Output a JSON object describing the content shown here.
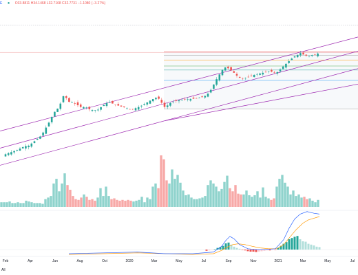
{
  "header": {
    "symbol_fragment": "E",
    "ohlc_text": "O33.8811 H34.1468 L32.7168 C32.7731 −1.1080 (−3.27%)"
  },
  "toolbar": {
    "range_label": "All"
  },
  "colors": {
    "up": "#26a69a",
    "down": "#ef5350",
    "up_volume": "#8fd3cc",
    "down_volume": "#f7a9a7",
    "channel": "#9c27b0",
    "macd": "#2962ff",
    "signal": "#ff9800",
    "fib_levels": [
      "#ef5350",
      "#9e9e9e",
      "#ff9800",
      "#4caf50",
      "#26a69a",
      "#2196f3",
      "#9e9e9e"
    ]
  },
  "chart_data": {
    "type": "candlestick",
    "x_ticks": [
      "Feb",
      "Apr",
      "Jun",
      "Aug",
      "Oct",
      "2020",
      "Mar",
      "May",
      "Jul",
      "Sep",
      "Nov",
      "2021",
      "Mar",
      "May",
      "Jul"
    ],
    "price_series": [
      [
        0,
        5.0
      ],
      [
        4,
        6.2
      ],
      [
        8,
        7.0
      ],
      [
        14,
        7.6
      ],
      [
        20,
        8.2
      ],
      [
        28,
        9.1
      ],
      [
        36,
        10.2
      ],
      [
        42,
        10.4
      ],
      [
        52,
        12.6
      ],
      [
        60,
        14.4
      ],
      [
        66,
        17.2
      ],
      [
        72,
        20.0
      ],
      [
        78,
        23.4
      ],
      [
        84,
        25.2
      ],
      [
        88,
        27.2
      ],
      [
        92,
        30.0
      ],
      [
        96,
        29.4
      ],
      [
        100,
        27.8
      ],
      [
        106,
        27.4
      ],
      [
        112,
        26.6
      ],
      [
        118,
        25.6
      ],
      [
        124,
        25.8
      ],
      [
        130,
        24.8
      ],
      [
        136,
        24.4
      ],
      [
        142,
        24.6
      ],
      [
        148,
        26.0
      ],
      [
        154,
        27.2
      ],
      [
        160,
        27.8
      ],
      [
        166,
        26.6
      ],
      [
        172,
        26.3
      ],
      [
        178,
        25.8
      ],
      [
        184,
        25.4
      ],
      [
        190,
        24.6
      ],
      [
        196,
        25.2
      ],
      [
        202,
        25.8
      ],
      [
        208,
        26.6
      ],
      [
        214,
        27.6
      ],
      [
        220,
        28.6
      ],
      [
        226,
        29.4
      ],
      [
        232,
        28.9
      ],
      [
        236,
        26.8
      ],
      [
        240,
        25.4
      ],
      [
        244,
        26.6
      ],
      [
        248,
        27.4
      ],
      [
        254,
        28.0
      ],
      [
        260,
        28.4
      ],
      [
        266,
        28.6
      ],
      [
        272,
        28.8
      ],
      [
        278,
        28.9
      ],
      [
        284,
        29.2
      ],
      [
        290,
        29.4
      ],
      [
        296,
        29.8
      ],
      [
        302,
        31.0
      ],
      [
        308,
        33.2
      ],
      [
        312,
        35.6
      ],
      [
        316,
        37.4
      ],
      [
        320,
        39.2
      ],
      [
        324,
        40.8
      ],
      [
        328,
        41.6
      ],
      [
        332,
        41.0
      ],
      [
        338,
        39.8
      ],
      [
        344,
        38.2
      ],
      [
        350,
        37.0
      ],
      [
        356,
        37.2
      ],
      [
        362,
        37.8
      ],
      [
        368,
        38.4
      ],
      [
        374,
        38.8
      ],
      [
        380,
        39.2
      ],
      [
        386,
        39.6
      ],
      [
        392,
        40.0
      ],
      [
        398,
        39.4
      ],
      [
        404,
        39.6
      ],
      [
        408,
        41.0
      ],
      [
        412,
        42.0
      ],
      [
        416,
        43.0
      ],
      [
        420,
        44.0
      ],
      [
        424,
        45.0
      ],
      [
        428,
        45.8
      ],
      [
        432,
        46.4
      ],
      [
        436,
        47.2
      ],
      [
        440,
        46.6
      ],
      [
        444,
        46.2
      ],
      [
        448,
        45.8
      ],
      [
        452,
        46.4
      ],
      [
        456,
        46.2
      ],
      [
        460,
        46.8
      ],
      [
        464,
        47.2
      ]
    ],
    "volume": [
      [
        2,
        0.6
      ],
      [
        6,
        0.6
      ],
      [
        10,
        0.6
      ],
      [
        14,
        0.7
      ],
      [
        18,
        0.5
      ],
      [
        22,
        0.5
      ],
      [
        26,
        0.6
      ],
      [
        30,
        0.5
      ],
      [
        34,
        0.5
      ],
      [
        38,
        0.8
      ],
      [
        42,
        0.7
      ],
      [
        46,
        0.6
      ],
      [
        50,
        0.5
      ],
      [
        54,
        0.5
      ],
      [
        58,
        0.5
      ],
      [
        62,
        0.4
      ],
      [
        66,
        1.0
      ],
      [
        70,
        1.2
      ],
      [
        74,
        1.4
      ],
      [
        78,
        3.0
      ],
      [
        82,
        3.6
      ],
      [
        86,
        2.0
      ],
      [
        90,
        3.0
      ],
      [
        94,
        4.3
      ],
      [
        98,
        2.8
      ],
      [
        102,
        2.2
      ],
      [
        106,
        1.4
      ],
      [
        110,
        1.0
      ],
      [
        114,
        0.9
      ],
      [
        118,
        1.2
      ],
      [
        122,
        1.6
      ],
      [
        126,
        1.3
      ],
      [
        130,
        0.9
      ],
      [
        134,
        1.0
      ],
      [
        138,
        0.8
      ],
      [
        142,
        1.2
      ],
      [
        146,
        2.4
      ],
      [
        150,
        1.4
      ],
      [
        154,
        2.6
      ],
      [
        158,
        1.4
      ],
      [
        162,
        1.0
      ],
      [
        166,
        1.1
      ],
      [
        170,
        0.9
      ],
      [
        174,
        0.8
      ],
      [
        178,
        0.9
      ],
      [
        182,
        0.8
      ],
      [
        186,
        0.9
      ],
      [
        190,
        0.8
      ],
      [
        194,
        0.7
      ],
      [
        198,
        0.8
      ],
      [
        202,
        0.9
      ],
      [
        206,
        1.3
      ],
      [
        210,
        0.6
      ],
      [
        214,
        1.2
      ],
      [
        218,
        1.0
      ],
      [
        222,
        2.6
      ],
      [
        226,
        3.0
      ],
      [
        230,
        2.4
      ],
      [
        234,
        6.6
      ],
      [
        238,
        6.1
      ],
      [
        242,
        3.4
      ],
      [
        246,
        3.0
      ],
      [
        250,
        4.8
      ],
      [
        254,
        3.6
      ],
      [
        258,
        4.1
      ],
      [
        262,
        3.1
      ],
      [
        266,
        2.1
      ],
      [
        270,
        1.5
      ],
      [
        274,
        1.6
      ],
      [
        278,
        1.2
      ],
      [
        282,
        1.0
      ],
      [
        286,
        1.0
      ],
      [
        290,
        1.1
      ],
      [
        294,
        1.2
      ],
      [
        298,
        1.4
      ],
      [
        302,
        2.8
      ],
      [
        306,
        3.4
      ],
      [
        310,
        3.0
      ],
      [
        314,
        2.6
      ],
      [
        318,
        2.0
      ],
      [
        322,
        2.3
      ],
      [
        326,
        3.2
      ],
      [
        330,
        4.0
      ],
      [
        334,
        2.4
      ],
      [
        338,
        2.0
      ],
      [
        342,
        2.8
      ],
      [
        346,
        1.7
      ],
      [
        350,
        1.6
      ],
      [
        354,
        1.6
      ],
      [
        358,
        2.1
      ],
      [
        362,
        1.5
      ],
      [
        366,
        1.3
      ],
      [
        370,
        1.5
      ],
      [
        374,
        2.0
      ],
      [
        378,
        1.2
      ],
      [
        382,
        2.5
      ],
      [
        386,
        1.3
      ],
      [
        390,
        1.1
      ],
      [
        394,
        0.9
      ],
      [
        398,
        1.1
      ],
      [
        402,
        2.6
      ],
      [
        406,
        3.6
      ],
      [
        410,
        4.1
      ],
      [
        414,
        3.1
      ],
      [
        418,
        2.6
      ],
      [
        422,
        1.6
      ],
      [
        426,
        2.1
      ],
      [
        430,
        1.4
      ],
      [
        434,
        1.6
      ],
      [
        438,
        1.2
      ],
      [
        442,
        1.3
      ],
      [
        446,
        1.0
      ],
      [
        450,
        1.1
      ],
      [
        454,
        0.8
      ],
      [
        458,
        0.6
      ],
      [
        462,
        0.9
      ]
    ],
    "macd": [
      [
        100,
        -0.5
      ],
      [
        150,
        -0.4
      ],
      [
        200,
        -0.3
      ],
      [
        240,
        -0.5
      ],
      [
        280,
        -0.5
      ],
      [
        310,
        -0.3
      ],
      [
        322,
        0.4
      ],
      [
        328,
        1.1
      ],
      [
        334,
        1.6
      ],
      [
        340,
        1.3
      ],
      [
        348,
        0.6
      ],
      [
        360,
        0.1
      ],
      [
        372,
        0.0
      ],
      [
        384,
        0.0
      ],
      [
        400,
        0.1
      ],
      [
        412,
        1.2
      ],
      [
        420,
        2.6
      ],
      [
        428,
        3.7
      ],
      [
        436,
        4.3
      ],
      [
        446,
        4.6
      ],
      [
        456,
        4.4
      ],
      [
        464,
        4.3
      ]
    ],
    "signal": [
      [
        100,
        -0.6
      ],
      [
        150,
        -0.5
      ],
      [
        200,
        -0.4
      ],
      [
        240,
        -0.5
      ],
      [
        280,
        -0.6
      ],
      [
        310,
        -0.5
      ],
      [
        322,
        -0.1
      ],
      [
        330,
        0.3
      ],
      [
        338,
        0.6
      ],
      [
        346,
        0.7
      ],
      [
        356,
        0.6
      ],
      [
        366,
        0.4
      ],
      [
        378,
        0.2
      ],
      [
        390,
        0.1
      ],
      [
        402,
        0.1
      ],
      [
        412,
        0.6
      ],
      [
        420,
        1.4
      ],
      [
        430,
        2.4
      ],
      [
        440,
        3.2
      ],
      [
        448,
        3.6
      ],
      [
        456,
        3.8
      ],
      [
        464,
        4.0
      ]
    ],
    "histogram": [
      [
        300,
        -0.15
      ],
      [
        304,
        -0.1
      ],
      [
        308,
        -0.05
      ],
      [
        312,
        0.05
      ],
      [
        316,
        0.2
      ],
      [
        320,
        0.3
      ],
      [
        324,
        0.45
      ],
      [
        328,
        0.75
      ],
      [
        332,
        0.85
      ],
      [
        336,
        0.6
      ],
      [
        340,
        0.35
      ],
      [
        344,
        0.2
      ],
      [
        348,
        0.1
      ],
      [
        352,
        -0.05
      ],
      [
        356,
        -0.1
      ],
      [
        360,
        -0.2
      ],
      [
        364,
        -0.25
      ],
      [
        368,
        -0.25
      ],
      [
        372,
        -0.3
      ],
      [
        376,
        -0.25
      ],
      [
        380,
        -0.2
      ],
      [
        384,
        -0.15
      ],
      [
        388,
        -0.1
      ],
      [
        392,
        -0.1
      ],
      [
        396,
        -0.05
      ],
      [
        400,
        -0.05
      ],
      [
        404,
        0.2
      ],
      [
        408,
        0.45
      ],
      [
        412,
        0.7
      ],
      [
        416,
        0.9
      ],
      [
        420,
        1.25
      ],
      [
        424,
        1.4
      ],
      [
        428,
        1.55
      ],
      [
        432,
        1.65
      ],
      [
        436,
        1.25
      ],
      [
        440,
        1.0
      ],
      [
        444,
        0.95
      ],
      [
        448,
        0.7
      ],
      [
        452,
        0.6
      ],
      [
        456,
        0.5
      ],
      [
        460,
        0.35
      ],
      [
        464,
        0.3
      ]
    ],
    "channel_lines": [
      {
        "x1": 0,
        "y1": 16.2,
        "x2": 520,
        "y2": 53.5
      },
      {
        "x1": 0,
        "y1": 9.4,
        "x2": 520,
        "y2": 47.9
      },
      {
        "x1": 0,
        "y1": 2.6,
        "x2": 520,
        "y2": 41.0
      },
      {
        "x1": 240,
        "y1": 20.3,
        "x2": 520,
        "y2": 34.8
      }
    ],
    "fib_band": {
      "x1": 238,
      "x2": 520
    },
    "fib_levels": [
      47.7,
      46.2,
      44.4,
      42.0,
      40.4,
      36.3,
      24.9
    ],
    "dotted_line": 58.2,
    "red_h_line": 47.4
  }
}
